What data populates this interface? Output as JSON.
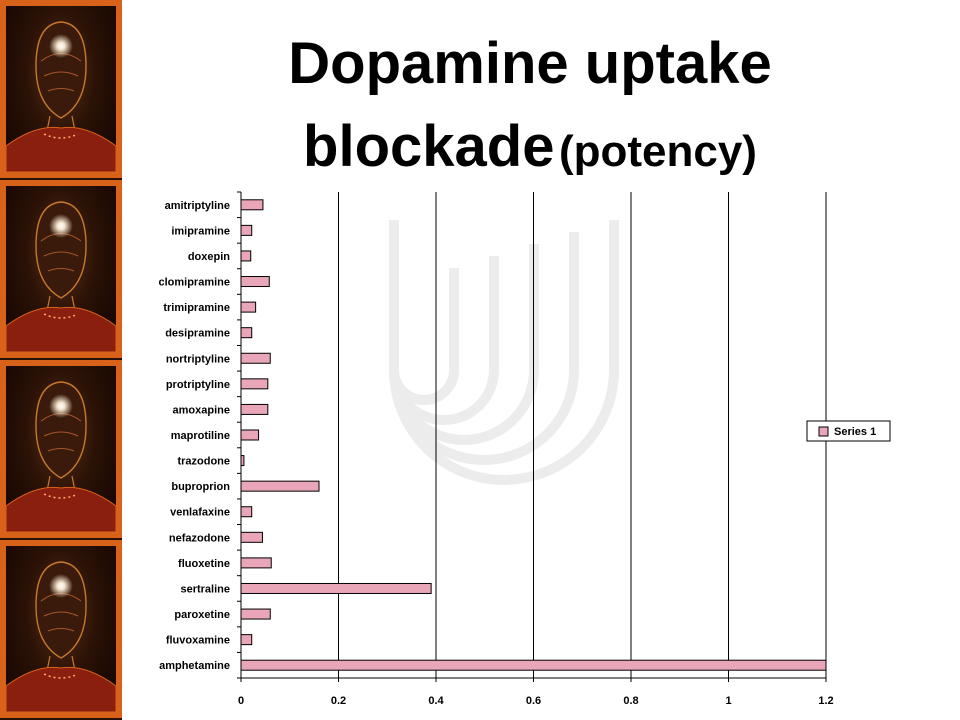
{
  "slide": {
    "title_line1": "Dopamine uptake",
    "title_line2_main": "blockade",
    "title_line2_paren": "(potency)"
  },
  "colors": {
    "bar_fill": "#e8a6b8",
    "bar_stroke": "#000000",
    "side_border": "#d9621a"
  },
  "side_strip": {
    "icon": "glowing-head-illustration",
    "panels": 4
  },
  "chart_data": {
    "type": "bar",
    "orientation": "horizontal",
    "categories": [
      "amitriptyline",
      "imipramine",
      "doxepin",
      "clomipramine",
      "trimipramine",
      "desipramine",
      "nortriptyline",
      "protriptyline",
      "amoxapine",
      "maprotiline",
      "trazodone",
      "buproprion",
      "venlafaxine",
      "nefazodone",
      "fluoxetine",
      "sertraline",
      "paroxetine",
      "fluvoxamine",
      "amphetamine"
    ],
    "series": [
      {
        "name": "Series 1",
        "values": [
          0.045,
          0.022,
          0.02,
          0.058,
          0.03,
          0.022,
          0.06,
          0.055,
          0.055,
          0.036,
          0.006,
          0.16,
          0.022,
          0.044,
          0.062,
          0.39,
          0.06,
          0.022,
          1.2
        ]
      }
    ],
    "xlim": [
      0,
      1.2
    ],
    "xticks": [
      "0",
      "0.2",
      "0.4",
      "0.6",
      "0.8",
      "1",
      "1.2"
    ],
    "grid": true,
    "legend_position": "right"
  }
}
